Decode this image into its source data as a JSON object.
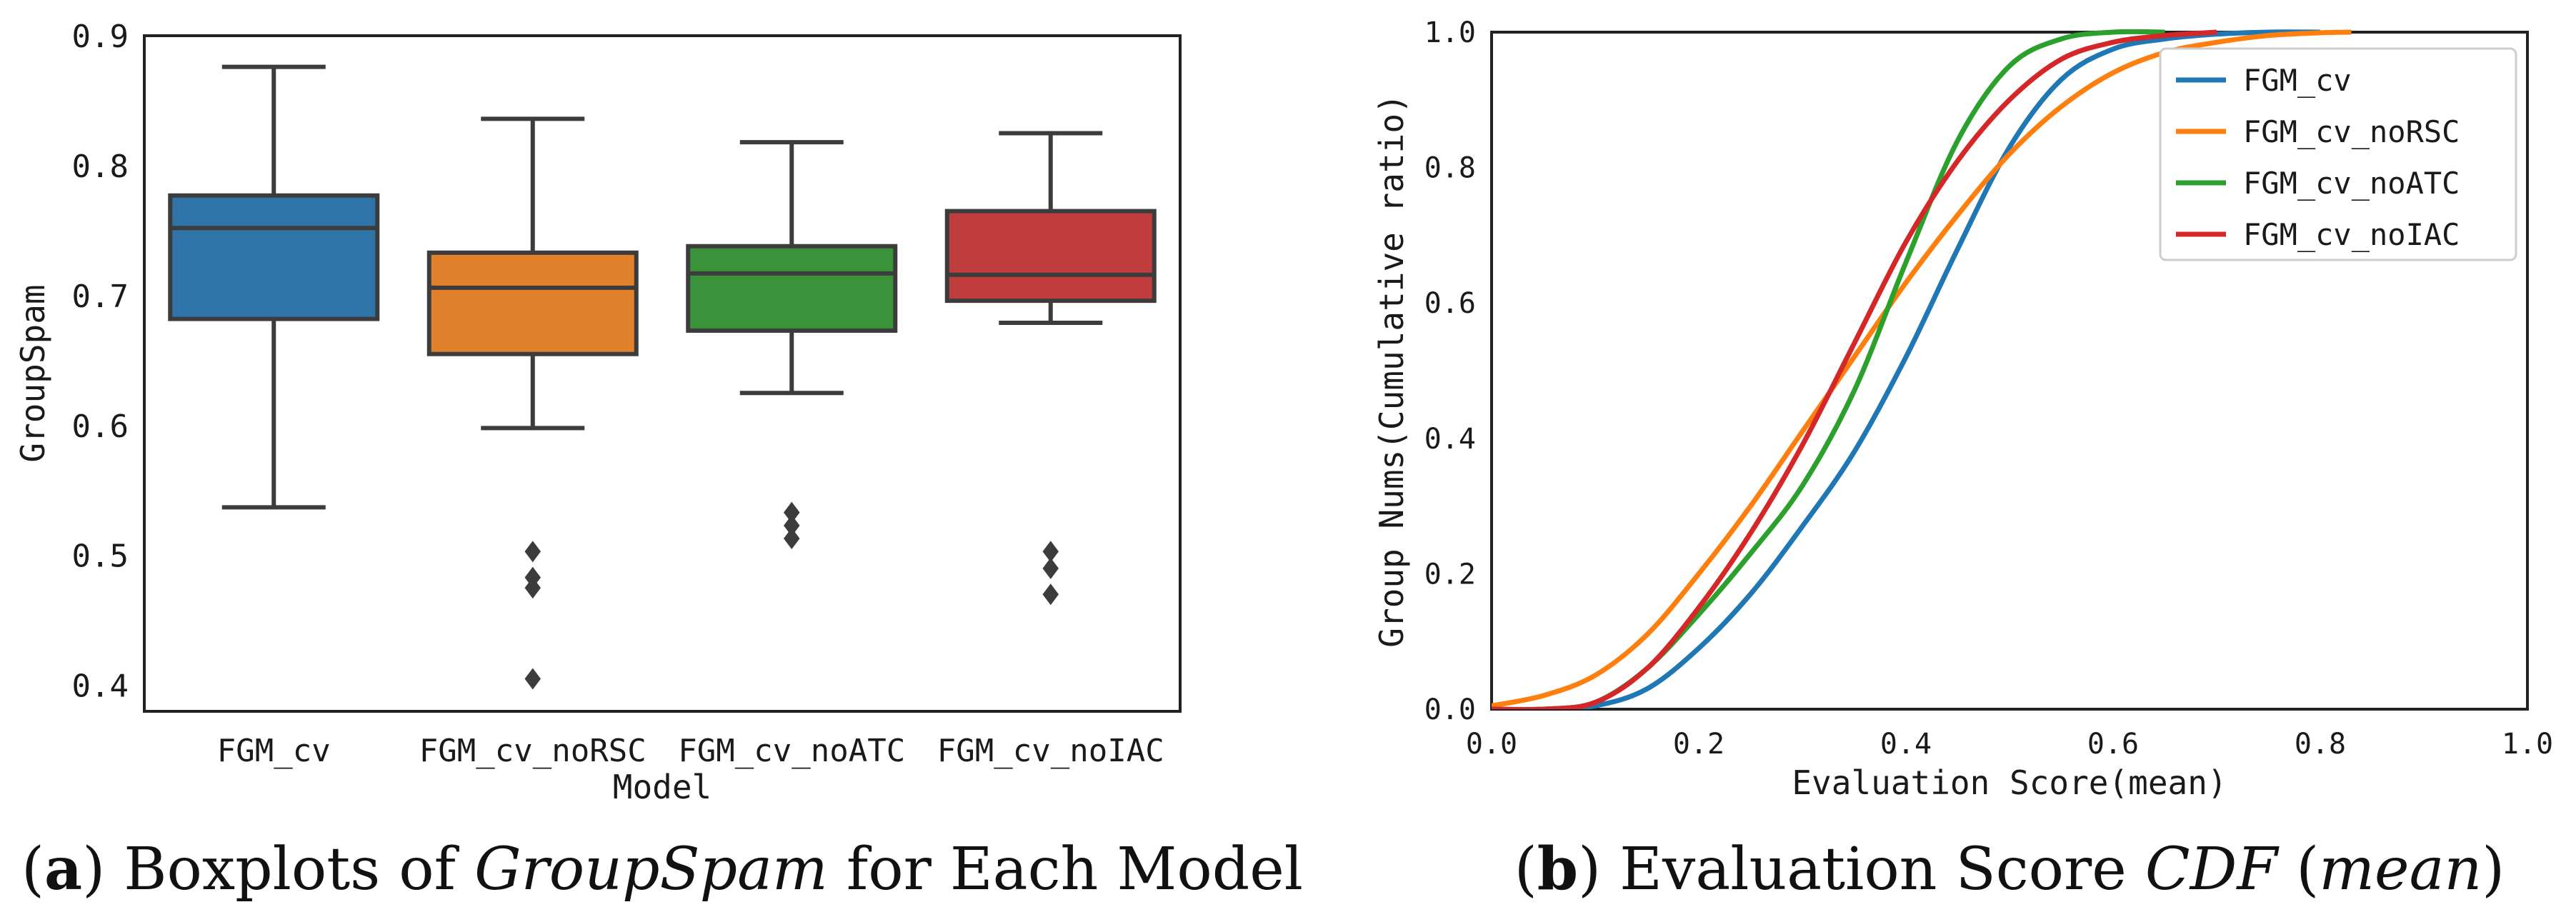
{
  "chart_data": [
    {
      "type": "box",
      "title": "",
      "xlabel": "Model",
      "ylabel": "GroupSpam",
      "ylim": [
        0.38,
        0.9
      ],
      "yticks": [
        "0.4",
        "0.5",
        "0.6",
        "0.7",
        "0.8",
        "0.9"
      ],
      "categories": [
        "FGM_cv",
        "FGM_cv_noRSC",
        "FGM_cv_noATC",
        "FGM_cv_noIAC"
      ],
      "boxes": [
        {
          "name": "FGM_cv",
          "color": "#2f74a8",
          "whislo": 0.537,
          "q1": 0.682,
          "median": 0.752,
          "q3": 0.777,
          "whishi": 0.876,
          "fliers": []
        },
        {
          "name": "FGM_cv_noRSC",
          "color": "#e1812c",
          "whislo": 0.598,
          "q1": 0.655,
          "median": 0.706,
          "q3": 0.733,
          "whishi": 0.836,
          "fliers": [
            0.503,
            0.483,
            0.475,
            0.405
          ]
        },
        {
          "name": "FGM_cv_noATC",
          "color": "#3a923a",
          "whislo": 0.625,
          "q1": 0.673,
          "median": 0.717,
          "q3": 0.738,
          "whishi": 0.818,
          "fliers": [
            0.533,
            0.523,
            0.513
          ]
        },
        {
          "name": "FGM_cv_noIAC",
          "color": "#c03d3e",
          "whislo": 0.679,
          "q1": 0.696,
          "median": 0.716,
          "q3": 0.765,
          "whishi": 0.825,
          "fliers": [
            0.503,
            0.49,
            0.47
          ]
        }
      ],
      "caption": {
        "letter": "a",
        "prefix": " Boxplots of ",
        "italic": "GroupSpam",
        "suffix": " for Each Model"
      }
    },
    {
      "type": "line",
      "title": "",
      "xlabel": "Evaluation Score(mean)",
      "ylabel": "Group Nums(Cumulative ratio)",
      "xlim": [
        0,
        1
      ],
      "ylim": [
        0,
        1
      ],
      "xticks": [
        "0.0",
        "0.2",
        "0.4",
        "0.6",
        "0.8",
        "1.0"
      ],
      "yticks": [
        "0.0",
        "0.2",
        "0.4",
        "0.6",
        "0.8",
        "1.0"
      ],
      "legend_position": "top-right",
      "series": [
        {
          "name": "FGM_cv",
          "color": "#1f77b4",
          "x": [
            0.0,
            0.05,
            0.1,
            0.15,
            0.2,
            0.25,
            0.3,
            0.35,
            0.4,
            0.45,
            0.5,
            0.55,
            0.6,
            0.65,
            0.7,
            0.75,
            0.8
          ],
          "y": [
            0.0,
            0.0,
            0.005,
            0.03,
            0.09,
            0.17,
            0.27,
            0.38,
            0.52,
            0.68,
            0.83,
            0.93,
            0.975,
            0.99,
            0.997,
            1.0,
            1.0
          ]
        },
        {
          "name": "FGM_cv_noRSC",
          "color": "#ff7f0e",
          "x": [
            0.0,
            0.05,
            0.1,
            0.15,
            0.2,
            0.25,
            0.3,
            0.35,
            0.4,
            0.45,
            0.5,
            0.55,
            0.6,
            0.65,
            0.7,
            0.75,
            0.8,
            0.83
          ],
          "y": [
            0.005,
            0.02,
            0.05,
            0.11,
            0.2,
            0.3,
            0.41,
            0.52,
            0.63,
            0.73,
            0.82,
            0.89,
            0.94,
            0.97,
            0.985,
            0.995,
            0.999,
            1.0
          ]
        },
        {
          "name": "FGM_cv_noATC",
          "color": "#2ca02c",
          "x": [
            0.0,
            0.05,
            0.1,
            0.15,
            0.2,
            0.25,
            0.3,
            0.35,
            0.4,
            0.45,
            0.5,
            0.55,
            0.6,
            0.65
          ],
          "y": [
            0.0,
            0.0,
            0.01,
            0.06,
            0.14,
            0.23,
            0.33,
            0.47,
            0.66,
            0.84,
            0.95,
            0.99,
            1.0,
            1.0
          ]
        },
        {
          "name": "FGM_cv_noIAC",
          "color": "#d62728",
          "x": [
            0.0,
            0.05,
            0.1,
            0.15,
            0.2,
            0.25,
            0.3,
            0.35,
            0.4,
            0.45,
            0.5,
            0.55,
            0.6,
            0.65,
            0.7
          ],
          "y": [
            0.0,
            0.0,
            0.01,
            0.06,
            0.15,
            0.26,
            0.39,
            0.54,
            0.69,
            0.81,
            0.9,
            0.96,
            0.985,
            0.995,
            1.0
          ]
        }
      ],
      "caption": {
        "letter": "b",
        "prefix": " Evaluation Score ",
        "italic": "CDF",
        "middle": " (",
        "italic2": "mean",
        "suffix": ")"
      }
    }
  ]
}
